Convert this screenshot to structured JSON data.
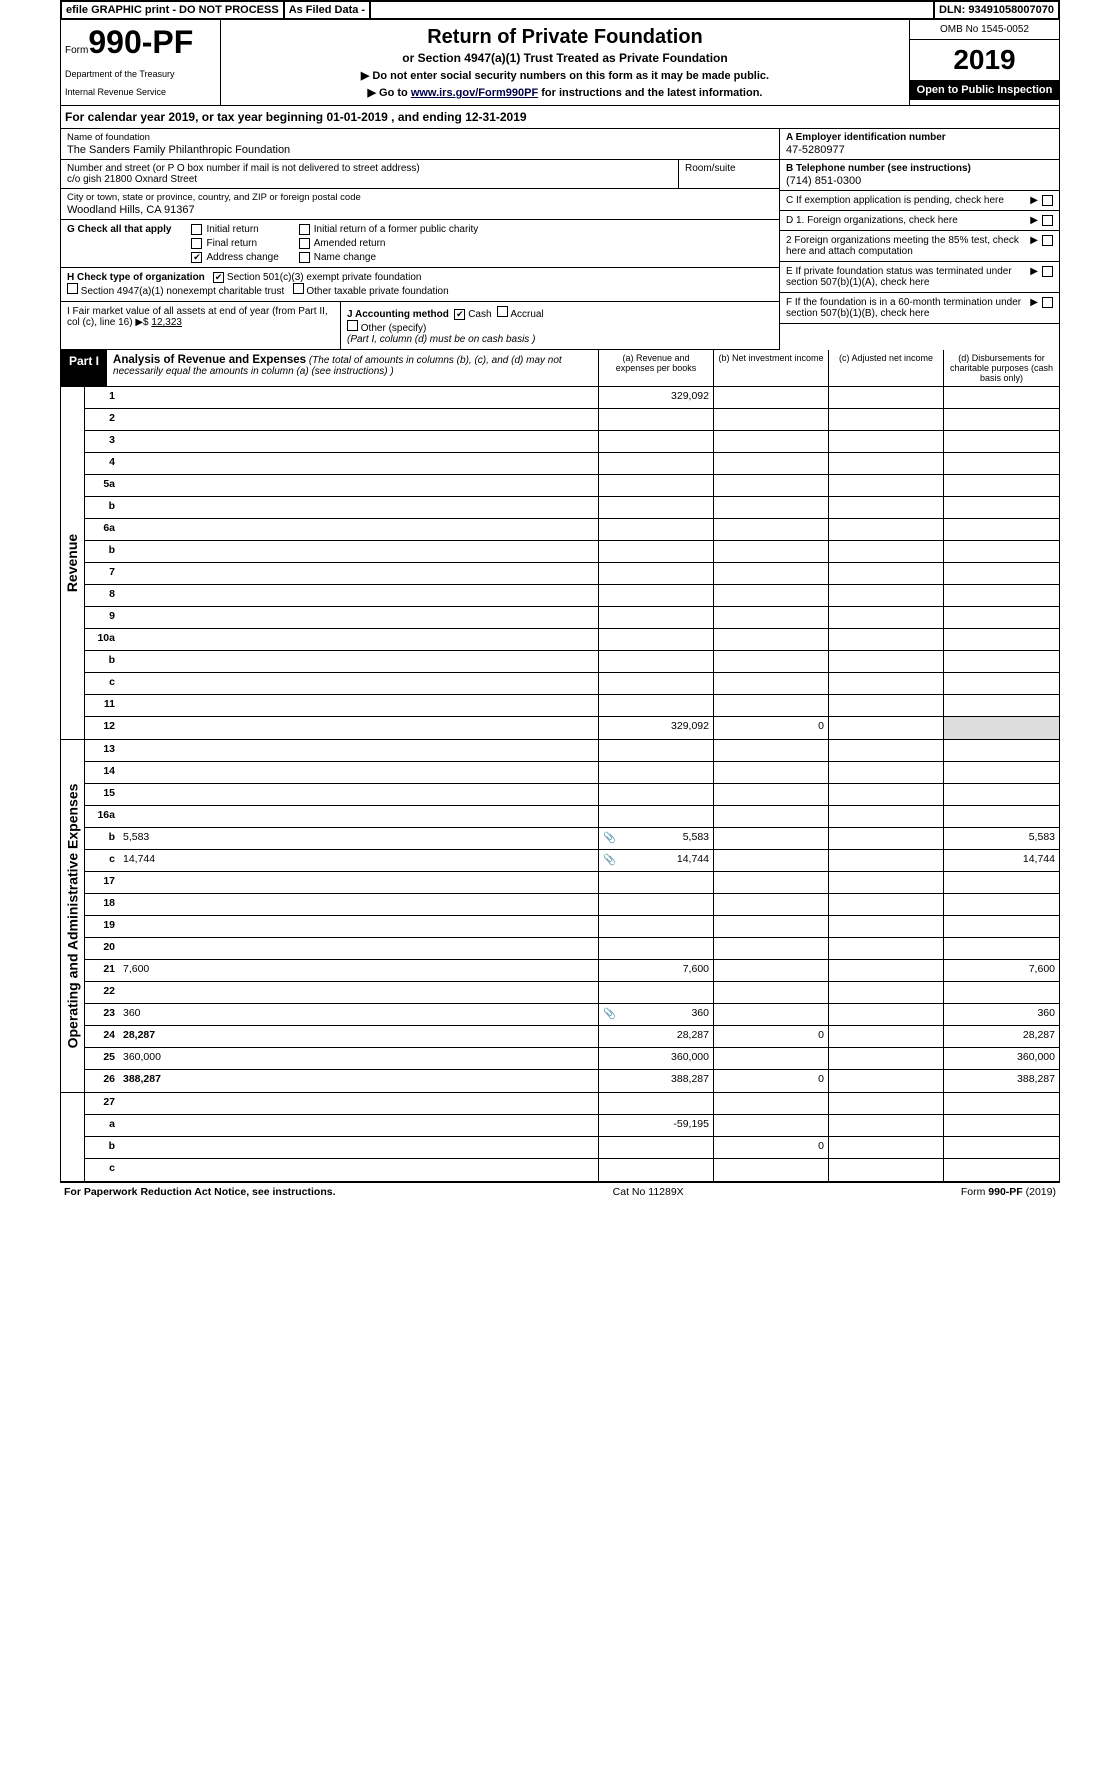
{
  "topbar": {
    "efile": "efile GRAPHIC print - DO NOT PROCESS",
    "asfiled": "As Filed Data -",
    "dln": "DLN: 93491058007070"
  },
  "header": {
    "form_word": "Form",
    "form_num": "990-PF",
    "dept1": "Department of the Treasury",
    "dept2": "Internal Revenue Service",
    "title": "Return of Private Foundation",
    "sub1": "or Section 4947(a)(1) Trust Treated as Private Foundation",
    "sub2": "▶ Do not enter social security numbers on this form as it may be made public.",
    "sub3_pre": "▶ Go to ",
    "sub3_link": "www.irs.gov/Form990PF",
    "sub3_post": " for instructions and the latest information.",
    "omb": "OMB No 1545-0052",
    "year": "2019",
    "inspect": "Open to Public Inspection"
  },
  "cal_year": {
    "pre": "For calendar year 2019, or tax year beginning ",
    "begin": "01-01-2019",
    "mid": " , and ending ",
    "end": "12-31-2019"
  },
  "foundation": {
    "name_label": "Name of foundation",
    "name": "The Sanders Family Philanthropic Foundation",
    "addr_label": "Number and street (or P O  box number if mail is not delivered to street address)",
    "room_label": "Room/suite",
    "addr": "c/o gish 21800 Oxnard Street",
    "city_label": "City or town, state or province, country, and ZIP or foreign postal code",
    "city": "Woodland Hills, CA  91367"
  },
  "right_info": {
    "A_label": "A Employer identification number",
    "A_val": "47-5280977",
    "B_label": "B Telephone number (see instructions)",
    "B_val": "(714) 851-0300",
    "C": "C If exemption application is pending, check here",
    "D1": "D 1. Foreign organizations, check here",
    "D2": "2 Foreign organizations meeting the 85% test, check here and attach computation",
    "E": "E  If private foundation status was terminated under section 507(b)(1)(A), check here",
    "F": "F  If the foundation is in a 60-month termination under section 507(b)(1)(B), check here"
  },
  "G": {
    "label": "G Check all that apply",
    "opts": [
      "Initial return",
      "Initial return of a former public charity",
      "Final return",
      "Amended return",
      "Address change",
      "Name change"
    ],
    "checked": [
      false,
      false,
      false,
      false,
      true,
      false
    ]
  },
  "H": {
    "label": "H Check type of organization",
    "o1": "Section 501(c)(3) exempt private foundation",
    "o2": "Section 4947(a)(1) nonexempt charitable trust",
    "o3": "Other taxable private foundation",
    "checked": [
      true,
      false,
      false
    ]
  },
  "I": {
    "label": "I Fair market value of all assets at end of year (from Part II, col  (c), line 16) ▶$ ",
    "val": "12,323"
  },
  "J": {
    "label": "J Accounting method",
    "o1": "Cash",
    "o2": "Accrual",
    "o3": "Other (specify)",
    "note": "(Part I, column (d) must be on cash basis )",
    "checked": [
      true,
      false
    ]
  },
  "part1": {
    "label": "Part I",
    "title": "Analysis of Revenue and Expenses",
    "desc": " (The total of amounts in columns (b), (c), and (d) may not necessarily equal the amounts in column (a) (see instructions) )",
    "cols": {
      "a": "(a) Revenue and expenses per books",
      "b": "(b) Net investment income",
      "c": "(c) Adjusted net income",
      "d": "(d) Disbursements for charitable purposes (cash basis only)"
    }
  },
  "sections": {
    "revenue": "Revenue",
    "expenses": "Operating and Administrative Expenses"
  },
  "rows": [
    {
      "n": "1",
      "d": "",
      "a": "329,092",
      "b": "",
      "c": "",
      "ds": false
    },
    {
      "n": "2",
      "d": "",
      "a": "",
      "b": "",
      "c": "",
      "ds": false
    },
    {
      "n": "3",
      "d": "",
      "a": "",
      "b": "",
      "c": "",
      "ds": false
    },
    {
      "n": "4",
      "d": "",
      "a": "",
      "b": "",
      "c": "",
      "ds": false
    },
    {
      "n": "5a",
      "d": "",
      "a": "",
      "b": "",
      "c": "",
      "ds": false
    },
    {
      "n": "b",
      "d": "",
      "a": "",
      "b": "",
      "c": "",
      "ds": false
    },
    {
      "n": "6a",
      "d": "",
      "a": "",
      "b": "",
      "c": "",
      "ds": false
    },
    {
      "n": "b",
      "d": "",
      "a": "",
      "b": "",
      "c": "",
      "ds": false
    },
    {
      "n": "7",
      "d": "",
      "a": "",
      "b": "",
      "c": "",
      "ds": false
    },
    {
      "n": "8",
      "d": "",
      "a": "",
      "b": "",
      "c": "",
      "ds": false
    },
    {
      "n": "9",
      "d": "",
      "a": "",
      "b": "",
      "c": "",
      "ds": false
    },
    {
      "n": "10a",
      "d": "",
      "a": "",
      "b": "",
      "c": "",
      "ds": false
    },
    {
      "n": "b",
      "d": "",
      "a": "",
      "b": "",
      "c": "",
      "ds": false
    },
    {
      "n": "c",
      "d": "",
      "a": "",
      "b": "",
      "c": "",
      "ds": false
    },
    {
      "n": "11",
      "d": "",
      "a": "",
      "b": "",
      "c": "",
      "ds": false
    },
    {
      "n": "12",
      "d": "",
      "a": "329,092",
      "b": "0",
      "c": "",
      "bold": true,
      "ds": true
    }
  ],
  "exp_rows": [
    {
      "n": "13",
      "d": "",
      "a": "",
      "b": "",
      "c": ""
    },
    {
      "n": "14",
      "d": "",
      "a": "",
      "b": "",
      "c": ""
    },
    {
      "n": "15",
      "d": "",
      "a": "",
      "b": "",
      "c": ""
    },
    {
      "n": "16a",
      "d": "",
      "a": "",
      "b": "",
      "c": ""
    },
    {
      "n": "b",
      "d": "5,583",
      "a": "5,583",
      "b": "",
      "c": "",
      "icon": true
    },
    {
      "n": "c",
      "d": "14,744",
      "a": "14,744",
      "b": "",
      "c": "",
      "icon": true
    },
    {
      "n": "17",
      "d": "",
      "a": "",
      "b": "",
      "c": ""
    },
    {
      "n": "18",
      "d": "",
      "a": "",
      "b": "",
      "c": ""
    },
    {
      "n": "19",
      "d": "",
      "a": "",
      "b": "",
      "c": ""
    },
    {
      "n": "20",
      "d": "",
      "a": "",
      "b": "",
      "c": ""
    },
    {
      "n": "21",
      "d": "7,600",
      "a": "7,600",
      "b": "",
      "c": ""
    },
    {
      "n": "22",
      "d": "",
      "a": "",
      "b": "",
      "c": ""
    },
    {
      "n": "23",
      "d": "360",
      "a": "360",
      "b": "",
      "c": "",
      "icon": true
    },
    {
      "n": "24",
      "d": "28,287",
      "a": "28,287",
      "b": "0",
      "c": "",
      "bold": true
    },
    {
      "n": "25",
      "d": "360,000",
      "a": "360,000",
      "b": "",
      "c": ""
    },
    {
      "n": "26",
      "d": "388,287",
      "a": "388,287",
      "b": "0",
      "c": "",
      "bold": true
    }
  ],
  "bottom_rows": [
    {
      "n": "27",
      "d": "",
      "a": "",
      "b": "",
      "c": ""
    },
    {
      "n": "a",
      "d": "",
      "a": "-59,195",
      "b": "",
      "c": "",
      "bold": true
    },
    {
      "n": "b",
      "d": "",
      "a": "",
      "b": "0",
      "c": "",
      "bold": true
    },
    {
      "n": "c",
      "d": "",
      "a": "",
      "b": "",
      "c": "",
      "bold": true
    }
  ],
  "footer": {
    "left": "For Paperwork Reduction Act Notice, see instructions.",
    "mid": "Cat  No  11289X",
    "right": "Form 990-PF (2019)"
  },
  "colors": {
    "black": "#000000",
    "white": "#ffffff",
    "shade": "#dddddd"
  }
}
